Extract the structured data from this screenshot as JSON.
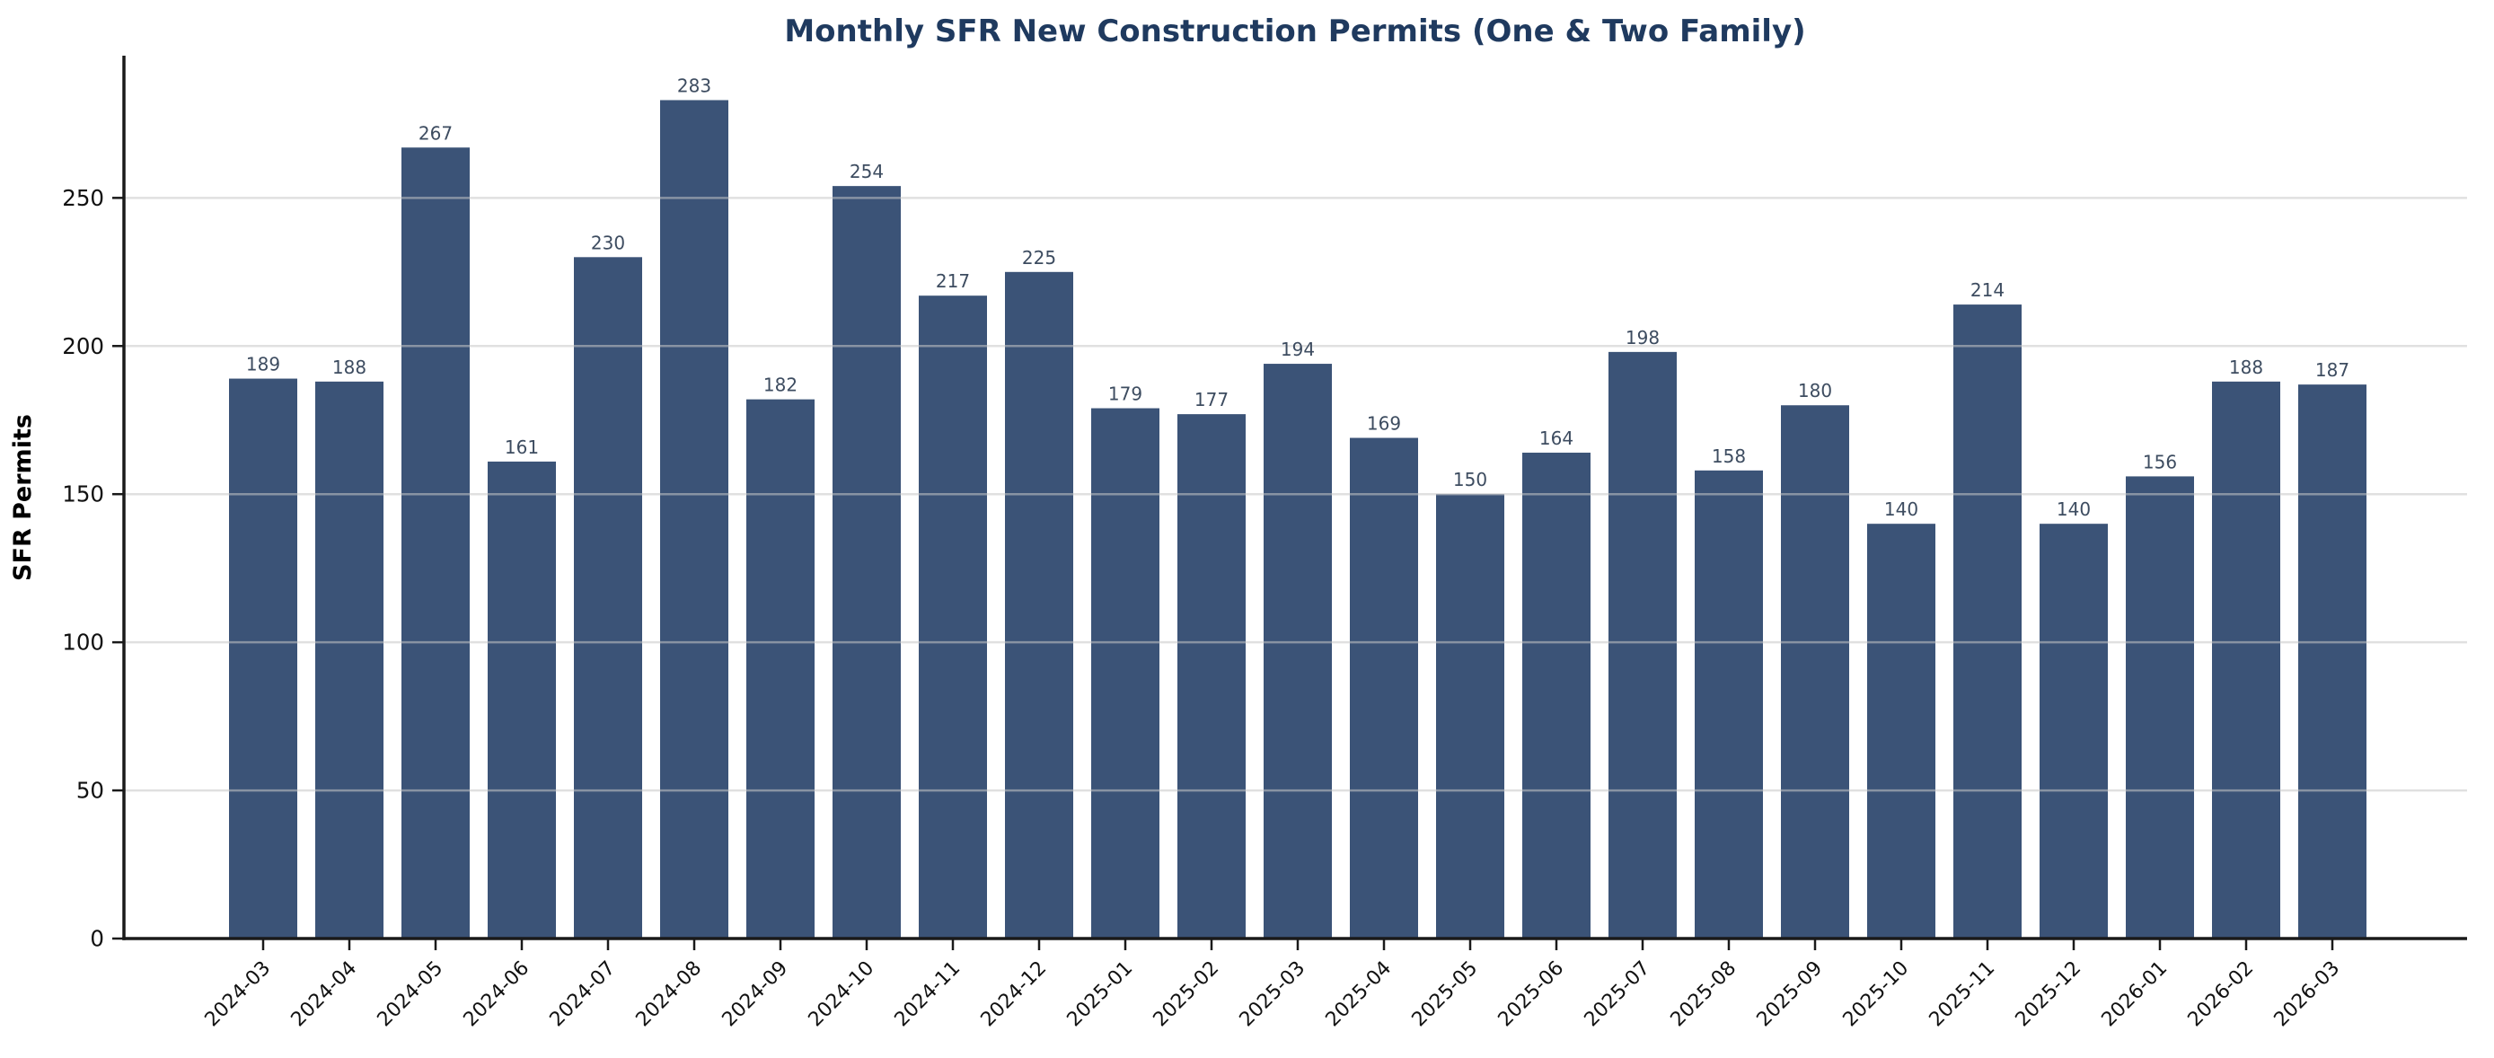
{
  "chart_data": {
    "type": "bar",
    "title": "Monthly SFR New Construction Permits (One & Two Family)",
    "xlabel": "",
    "ylabel": "SFR Permits",
    "categories": [
      "2024-03",
      "2024-04",
      "2024-05",
      "2024-06",
      "2024-07",
      "2024-08",
      "2024-09",
      "2024-10",
      "2024-11",
      "2024-12",
      "2025-01",
      "2025-02",
      "2025-03",
      "2025-04",
      "2025-05",
      "2025-06",
      "2025-07",
      "2025-08",
      "2025-09",
      "2025-10",
      "2025-11",
      "2025-12",
      "2026-01",
      "2026-02",
      "2026-03"
    ],
    "values": [
      189,
      188,
      267,
      161,
      230,
      283,
      182,
      254,
      217,
      225,
      179,
      177,
      194,
      169,
      150,
      164,
      198,
      158,
      180,
      140,
      214,
      140,
      156,
      188,
      187
    ],
    "value_labels_shown": true,
    "yticks": [
      0,
      50,
      100,
      150,
      200,
      250
    ],
    "ylim": [
      0,
      298
    ],
    "grid": true,
    "legend_position": "none",
    "colors": {
      "bar": "#3b5377",
      "title": "#1f3a5f",
      "value_label": "#3d4c60",
      "tick_label": "#111111",
      "axis": "#1a1a1a",
      "grid": "#c8c8c8",
      "background": "#ffffff"
    }
  }
}
